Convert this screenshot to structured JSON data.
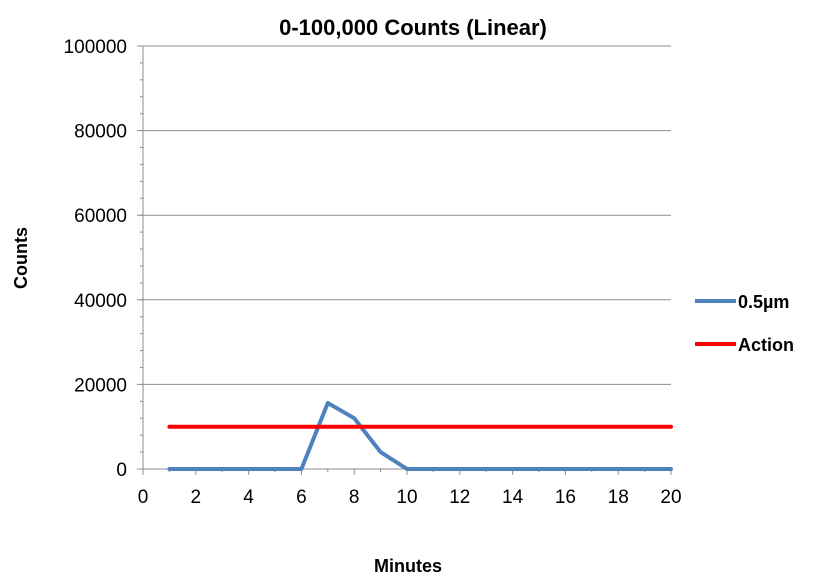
{
  "chart_data": {
    "type": "line",
    "title": "0-100,000 Counts (Linear)",
    "xlabel": "Minutes",
    "ylabel": "Counts",
    "xlim": [
      0,
      20
    ],
    "ylim": [
      0,
      100000
    ],
    "x_ticks": [
      "0",
      "2",
      "4",
      "6",
      "8",
      "10",
      "12",
      "14",
      "16",
      "18",
      "20"
    ],
    "y_ticks": [
      "0",
      "20000",
      "40000",
      "60000",
      "80000",
      "100000"
    ],
    "grid": "horizontal major gridlines",
    "legend": "right",
    "series": [
      {
        "name": "0.5µm",
        "color": "#4f81bd",
        "x": [
          1,
          2,
          3,
          4,
          5,
          6,
          7,
          8,
          9,
          10,
          11,
          12,
          13,
          14,
          15,
          16,
          17,
          18,
          19,
          20
        ],
        "y": [
          0,
          0,
          0,
          0,
          0,
          0,
          15600,
          12000,
          4000,
          0,
          0,
          0,
          0,
          0,
          0,
          0,
          0,
          0,
          0,
          0
        ]
      },
      {
        "name": "Action",
        "color": "#ff0000",
        "x": [
          1,
          2,
          3,
          4,
          5,
          6,
          7,
          8,
          9,
          10,
          11,
          12,
          13,
          14,
          15,
          16,
          17,
          18,
          19,
          20
        ],
        "y": [
          10000,
          10000,
          10000,
          10000,
          10000,
          10000,
          10000,
          10000,
          10000,
          10000,
          10000,
          10000,
          10000,
          10000,
          10000,
          10000,
          10000,
          10000,
          10000,
          10000
        ]
      }
    ]
  }
}
